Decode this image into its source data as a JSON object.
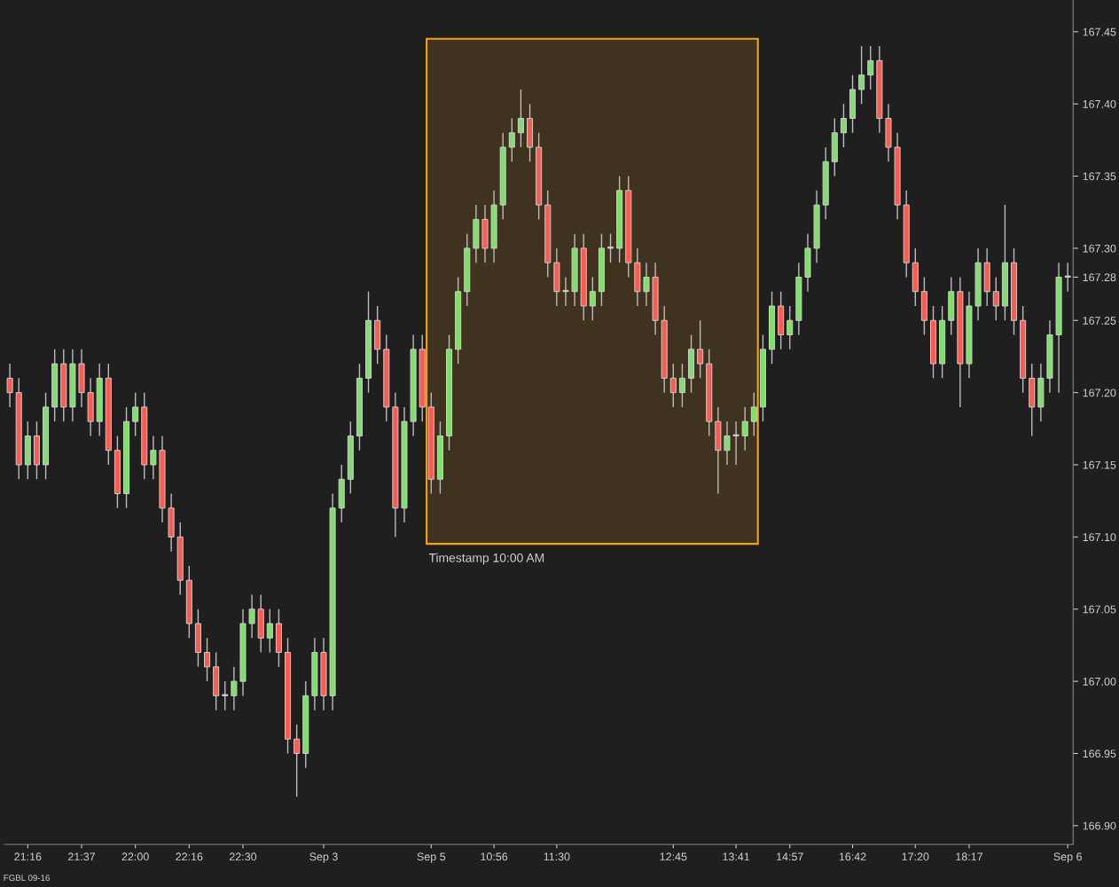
{
  "chart_data": {
    "type": "candlestick",
    "categories": [
      null,
      null,
      "21:16",
      null,
      null,
      null,
      null,
      null,
      "21:37",
      null,
      null,
      null,
      null,
      null,
      "22:00",
      null,
      null,
      null,
      null,
      null,
      "22:16",
      null,
      null,
      null,
      null,
      null,
      "22:30",
      null,
      null,
      null,
      null,
      null,
      null,
      null,
      null,
      "Sep 3",
      null,
      null,
      null,
      null,
      null,
      null,
      null,
      null,
      null,
      null,
      null,
      "Sep 5",
      null,
      null,
      null,
      null,
      null,
      null,
      "10:56",
      null,
      null,
      null,
      null,
      null,
      null,
      "11:30",
      null,
      null,
      null,
      null,
      null,
      null,
      null,
      null,
      null,
      null,
      null,
      null,
      "12:45",
      null,
      null,
      null,
      null,
      null,
      null,
      "13:41",
      null,
      null,
      null,
      null,
      null,
      "14:57",
      null,
      null,
      null,
      null,
      null,
      null,
      "16:42",
      null,
      null,
      null,
      null,
      null,
      null,
      "17:20",
      null,
      null,
      null,
      null,
      null,
      "18:17",
      null,
      null,
      null,
      null,
      null,
      null,
      null,
      null,
      null,
      null,
      "Sep 6"
    ],
    "ohlc": [
      [
        167.21,
        167.22,
        167.19,
        167.2
      ],
      [
        167.2,
        167.21,
        167.14,
        167.15
      ],
      [
        167.15,
        167.18,
        167.14,
        167.17
      ],
      [
        167.17,
        167.18,
        167.14,
        167.15
      ],
      [
        167.15,
        167.2,
        167.14,
        167.19
      ],
      [
        167.19,
        167.23,
        167.18,
        167.22
      ],
      [
        167.22,
        167.23,
        167.18,
        167.19
      ],
      [
        167.19,
        167.23,
        167.18,
        167.22
      ],
      [
        167.22,
        167.23,
        167.19,
        167.2
      ],
      [
        167.2,
        167.21,
        167.17,
        167.18
      ],
      [
        167.18,
        167.22,
        167.17,
        167.21
      ],
      [
        167.21,
        167.22,
        167.15,
        167.16
      ],
      [
        167.16,
        167.17,
        167.12,
        167.13
      ],
      [
        167.13,
        167.19,
        167.12,
        167.18
      ],
      [
        167.18,
        167.2,
        167.17,
        167.19
      ],
      [
        167.19,
        167.2,
        167.14,
        167.15
      ],
      [
        167.15,
        167.17,
        167.14,
        167.16
      ],
      [
        167.16,
        167.17,
        167.11,
        167.12
      ],
      [
        167.12,
        167.13,
        167.09,
        167.1
      ],
      [
        167.1,
        167.11,
        167.06,
        167.07
      ],
      [
        167.07,
        167.08,
        167.03,
        167.04
      ],
      [
        167.04,
        167.05,
        167.01,
        167.02
      ],
      [
        167.02,
        167.03,
        167.0,
        167.01
      ],
      [
        167.01,
        167.02,
        166.98,
        166.99
      ],
      [
        166.99,
        167.0,
        166.98,
        166.99
      ],
      [
        166.99,
        167.01,
        166.98,
        167.0
      ],
      [
        167.0,
        167.05,
        166.99,
        167.04
      ],
      [
        167.04,
        167.06,
        167.03,
        167.05
      ],
      [
        167.05,
        167.06,
        167.02,
        167.03
      ],
      [
        167.03,
        167.05,
        167.02,
        167.04
      ],
      [
        167.04,
        167.05,
        167.01,
        167.02
      ],
      [
        167.02,
        167.03,
        166.95,
        166.96
      ],
      [
        166.96,
        166.97,
        166.92,
        166.95
      ],
      [
        166.95,
        167.0,
        166.94,
        166.99
      ],
      [
        166.99,
        167.03,
        166.98,
        167.02
      ],
      [
        167.02,
        167.03,
        166.98,
        166.99
      ],
      [
        166.99,
        167.13,
        166.98,
        167.12
      ],
      [
        167.12,
        167.15,
        167.11,
        167.14
      ],
      [
        167.14,
        167.18,
        167.13,
        167.17
      ],
      [
        167.17,
        167.22,
        167.16,
        167.21
      ],
      [
        167.21,
        167.27,
        167.2,
        167.25
      ],
      [
        167.25,
        167.26,
        167.22,
        167.23
      ],
      [
        167.23,
        167.24,
        167.18,
        167.19
      ],
      [
        167.19,
        167.2,
        167.1,
        167.12
      ],
      [
        167.12,
        167.19,
        167.11,
        167.18
      ],
      [
        167.18,
        167.24,
        167.17,
        167.23
      ],
      [
        167.23,
        167.24,
        167.18,
        167.19
      ],
      [
        167.19,
        167.2,
        167.13,
        167.14
      ],
      [
        167.14,
        167.18,
        167.13,
        167.17
      ],
      [
        167.17,
        167.24,
        167.16,
        167.23
      ],
      [
        167.23,
        167.28,
        167.22,
        167.27
      ],
      [
        167.27,
        167.31,
        167.26,
        167.3
      ],
      [
        167.3,
        167.33,
        167.29,
        167.32
      ],
      [
        167.32,
        167.33,
        167.29,
        167.3
      ],
      [
        167.3,
        167.34,
        167.29,
        167.33
      ],
      [
        167.33,
        167.38,
        167.32,
        167.37
      ],
      [
        167.37,
        167.39,
        167.36,
        167.38
      ],
      [
        167.38,
        167.41,
        167.37,
        167.39
      ],
      [
        167.39,
        167.4,
        167.36,
        167.37
      ],
      [
        167.37,
        167.38,
        167.32,
        167.33
      ],
      [
        167.33,
        167.34,
        167.28,
        167.29
      ],
      [
        167.29,
        167.3,
        167.26,
        167.27
      ],
      [
        167.27,
        167.28,
        167.26,
        167.27
      ],
      [
        167.27,
        167.31,
        167.26,
        167.3
      ],
      [
        167.3,
        167.31,
        167.25,
        167.26
      ],
      [
        167.26,
        167.28,
        167.25,
        167.27
      ],
      [
        167.27,
        167.31,
        167.26,
        167.3
      ],
      [
        167.3,
        167.31,
        167.29,
        167.3
      ],
      [
        167.3,
        167.35,
        167.29,
        167.34
      ],
      [
        167.34,
        167.35,
        167.28,
        167.29
      ],
      [
        167.29,
        167.3,
        167.26,
        167.27
      ],
      [
        167.27,
        167.29,
        167.26,
        167.28
      ],
      [
        167.28,
        167.29,
        167.24,
        167.25
      ],
      [
        167.25,
        167.26,
        167.2,
        167.21
      ],
      [
        167.21,
        167.22,
        167.19,
        167.2
      ],
      [
        167.2,
        167.22,
        167.19,
        167.21
      ],
      [
        167.21,
        167.24,
        167.2,
        167.23
      ],
      [
        167.23,
        167.25,
        167.21,
        167.22
      ],
      [
        167.22,
        167.23,
        167.17,
        167.18
      ],
      [
        167.18,
        167.19,
        167.13,
        167.16
      ],
      [
        167.16,
        167.18,
        167.15,
        167.17
      ],
      [
        167.17,
        167.18,
        167.15,
        167.17
      ],
      [
        167.17,
        167.19,
        167.16,
        167.18
      ],
      [
        167.18,
        167.2,
        167.17,
        167.19
      ],
      [
        167.19,
        167.24,
        167.18,
        167.23
      ],
      [
        167.23,
        167.27,
        167.22,
        167.26
      ],
      [
        167.26,
        167.27,
        167.23,
        167.24
      ],
      [
        167.24,
        167.26,
        167.23,
        167.25
      ],
      [
        167.25,
        167.29,
        167.24,
        167.28
      ],
      [
        167.28,
        167.31,
        167.27,
        167.3
      ],
      [
        167.3,
        167.34,
        167.29,
        167.33
      ],
      [
        167.33,
        167.37,
        167.32,
        167.36
      ],
      [
        167.36,
        167.39,
        167.35,
        167.38
      ],
      [
        167.38,
        167.4,
        167.37,
        167.39
      ],
      [
        167.39,
        167.42,
        167.38,
        167.41
      ],
      [
        167.41,
        167.44,
        167.4,
        167.42
      ],
      [
        167.42,
        167.44,
        167.41,
        167.43
      ],
      [
        167.43,
        167.44,
        167.38,
        167.39
      ],
      [
        167.39,
        167.4,
        167.36,
        167.37
      ],
      [
        167.37,
        167.38,
        167.32,
        167.33
      ],
      [
        167.33,
        167.34,
        167.28,
        167.29
      ],
      [
        167.29,
        167.3,
        167.26,
        167.27
      ],
      [
        167.27,
        167.28,
        167.24,
        167.25
      ],
      [
        167.25,
        167.26,
        167.21,
        167.22
      ],
      [
        167.22,
        167.26,
        167.21,
        167.25
      ],
      [
        167.25,
        167.28,
        167.24,
        167.27
      ],
      [
        167.27,
        167.28,
        167.19,
        167.22
      ],
      [
        167.22,
        167.27,
        167.21,
        167.26
      ],
      [
        167.26,
        167.3,
        167.25,
        167.29
      ],
      [
        167.29,
        167.3,
        167.26,
        167.27
      ],
      [
        167.27,
        167.28,
        167.25,
        167.26
      ],
      [
        167.26,
        167.33,
        167.25,
        167.29
      ],
      [
        167.29,
        167.3,
        167.24,
        167.25
      ],
      [
        167.25,
        167.26,
        167.2,
        167.21
      ],
      [
        167.21,
        167.22,
        167.17,
        167.19
      ],
      [
        167.19,
        167.22,
        167.18,
        167.21
      ],
      [
        167.21,
        167.25,
        167.2,
        167.24
      ],
      [
        167.24,
        167.29,
        167.2,
        167.28
      ],
      [
        167.28,
        167.29,
        167.27,
        167.28
      ]
    ],
    "colors": [
      "#ff5a4f",
      "#ff5a4f",
      "#7ee06a",
      "#ff5a4f",
      "#7ee06a",
      "#7ee06a",
      "#ff5a4f",
      "#7ee06a",
      "#ff5a4f",
      "#ff5a4f",
      "#7ee06a",
      "#ff5a4f",
      "#ff5a4f",
      "#7ee06a",
      "#7ee06a",
      "#ff5a4f",
      "#7ee06a",
      "#ff5a4f",
      "#ff5a4f",
      "#ff5a4f",
      "#ff5a4f",
      "#ff5a4f",
      "#ff5a4f",
      "#ff5a4f",
      "#d8d8d8",
      "#7ee06a",
      "#7ee06a",
      "#7ee06a",
      "#ff5a4f",
      "#7ee06a",
      "#ff5a4f",
      "#ff5a4f",
      "#ff5a4f",
      "#7ee06a",
      "#7ee06a",
      "#ff5a4f",
      "#7ee06a",
      "#7ee06a",
      "#7ee06a",
      "#7ee06a",
      "#7ee06a",
      "#ff5a4f",
      "#ff5a4f",
      "#ff5a4f",
      "#7ee06a",
      "#7ee06a",
      "#ff5a4f",
      "#ff5a4f",
      "#7ee06a",
      "#7ee06a",
      "#7ee06a",
      "#7ee06a",
      "#7ee06a",
      "#ff5a4f",
      "#7ee06a",
      "#7ee06a",
      "#7ee06a",
      "#7ee06a",
      "#ff5a4f",
      "#ff5a4f",
      "#ff5a4f",
      "#ff5a4f",
      "#d8d8d8",
      "#7ee06a",
      "#ff5a4f",
      "#7ee06a",
      "#7ee06a",
      "#d8d8d8",
      "#7ee06a",
      "#ff5a4f",
      "#ff5a4f",
      "#7ee06a",
      "#ff5a4f",
      "#ff5a4f",
      "#ff5a4f",
      "#7ee06a",
      "#7ee06a",
      "#ff5a4f",
      "#ff5a4f",
      "#ff5a4f",
      "#7ee06a",
      "#d8d8d8",
      "#7ee06a",
      "#7ee06a",
      "#7ee06a",
      "#7ee06a",
      "#ff5a4f",
      "#7ee06a",
      "#7ee06a",
      "#7ee06a",
      "#7ee06a",
      "#7ee06a",
      "#7ee06a",
      "#7ee06a",
      "#7ee06a",
      "#7ee06a",
      "#7ee06a",
      "#ff5a4f",
      "#ff5a4f",
      "#ff5a4f",
      "#ff5a4f",
      "#ff5a4f",
      "#ff5a4f",
      "#ff5a4f",
      "#7ee06a",
      "#7ee06a",
      "#ff5a4f",
      "#7ee06a",
      "#7ee06a",
      "#ff5a4f",
      "#ff5a4f",
      "#7ee06a",
      "#ff5a4f",
      "#ff5a4f",
      "#ff5a4f",
      "#7ee06a",
      "#7ee06a",
      "#7ee06a",
      "#d8d8d8"
    ],
    "ylim": [
      166.887,
      167.472
    ],
    "yticks": [
      {
        "value": 166.9,
        "label": "166.90"
      },
      {
        "value": 166.95,
        "label": "166.95"
      },
      {
        "value": 167.0,
        "label": "167.00"
      },
      {
        "value": 167.05,
        "label": "167.05"
      },
      {
        "value": 167.1,
        "label": "167.10"
      },
      {
        "value": 167.15,
        "label": "167.15"
      },
      {
        "value": 167.2,
        "label": "167.20"
      },
      {
        "value": 167.25,
        "label": "167.25"
      },
      {
        "value": 167.28,
        "label": "167.28"
      },
      {
        "value": 167.3,
        "label": "167.30"
      },
      {
        "value": 167.35,
        "label": "167.35"
      },
      {
        "value": 167.4,
        "label": "167.40"
      },
      {
        "value": 167.45,
        "label": "167.45"
      }
    ],
    "annotations": [
      "FGBL 09-16",
      "Timestamp 10:00 AM"
    ],
    "grid": false,
    "legend": false
  }
}
